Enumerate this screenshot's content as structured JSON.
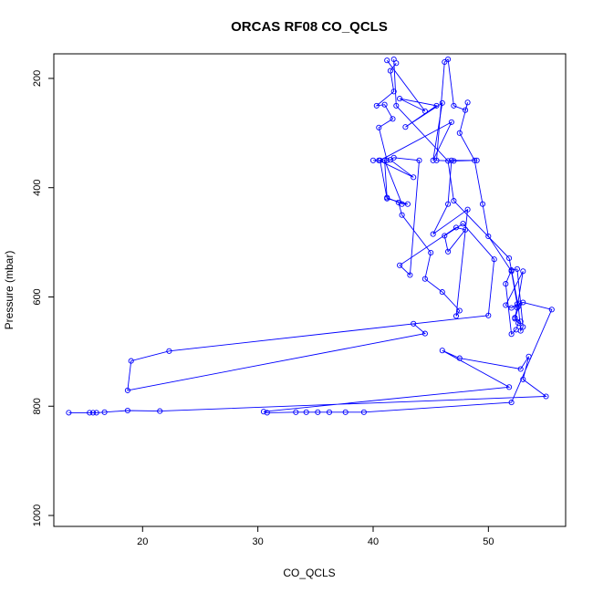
{
  "chart_data": {
    "type": "line",
    "title": "ORCAS RF08 CO_QCLS",
    "xlabel": "CO_QCLS",
    "ylabel": "Pressure (mbar)",
    "xlim": [
      12.3,
      56.7
    ],
    "ylim": [
      1020,
      155
    ],
    "y_reversed": true,
    "grid": false,
    "legend": "none",
    "marker": "open-circle",
    "color": "#0000ff",
    "x_ticks": [
      20,
      30,
      40,
      50
    ],
    "y_ticks": [
      200,
      400,
      600,
      800,
      1000
    ],
    "series": [
      {
        "x": [
          13.6,
          15.4,
          15.7,
          16.0,
          16.7,
          18.7,
          21.5,
          55.0,
          53.0,
          53.5,
          52.8,
          47.5,
          46.0,
          51.8,
          30.5,
          30.8,
          33.3,
          34.2,
          35.2,
          36.2,
          37.6,
          39.2,
          52.0,
          55.5,
          53.0,
          52.7,
          52.3,
          52.6,
          52.4,
          52.0,
          51.5,
          52.0,
          52.5,
          53.0,
          52.8,
          52.6,
          51.8,
          47.0,
          46.5,
          42.0,
          41.8
        ],
        "y": [
          812,
          812,
          812,
          812,
          811,
          808,
          809,
          782,
          751,
          709,
          732,
          712,
          698,
          765,
          810,
          812,
          811,
          811,
          811,
          811,
          811,
          811,
          793,
          623,
          610,
          612,
          640,
          648,
          660,
          668,
          576,
          551,
          549,
          655,
          662,
          617,
          529,
          424,
          351,
          250,
          165
        ]
      },
      {
        "x": [
          42.0,
          41.5,
          41.8,
          40.3,
          41.0,
          41.7,
          40.5,
          41.2,
          41.0,
          41.2,
          42.2,
          42.5,
          45.0,
          44.5,
          46.0,
          47.5,
          47.2,
          48.2,
          45.2,
          46.5,
          46.8,
          49.0,
          47.0,
          45.5,
          46.2,
          46.5,
          47.0,
          48.0,
          48.2,
          47.5,
          48.8,
          49.5,
          50.0,
          52.0,
          52.5,
          52.0,
          51.5,
          53.0,
          52.5,
          52.3,
          52.8
        ],
        "y": [
          172,
          186,
          224,
          250,
          248,
          274,
          290,
          350,
          350,
          418,
          427,
          450,
          519,
          567,
          591,
          625,
          635,
          440,
          485,
          430,
          350,
          350,
          351,
          350,
          170,
          165,
          250,
          258,
          244,
          300,
          350,
          430,
          489,
          553,
          613,
          620,
          615,
          553,
          620,
          638,
          645
        ]
      },
      {
        "x": [
          41.2,
          44.5,
          42.3,
          45.5,
          42.8,
          46.0,
          45.2,
          46.8,
          40.6,
          41.2,
          43.0,
          42.5,
          41.0,
          40.0,
          40.5,
          43.5,
          41.5,
          41.8,
          44.0,
          43.2,
          42.3,
          47.2,
          48.0,
          46.5,
          46.2,
          47.8,
          50.5,
          50.0,
          22.3,
          19.0,
          18.7,
          44.5,
          43.5
        ],
        "y": [
          167,
          260,
          237,
          250,
          289,
          245,
          350,
          280,
          350,
          420,
          430,
          430,
          350,
          350,
          350,
          381,
          349,
          345,
          350,
          560,
          542,
          473,
          477,
          517,
          488,
          466,
          531,
          634,
          699,
          717,
          771,
          667,
          649
        ]
      }
    ]
  }
}
